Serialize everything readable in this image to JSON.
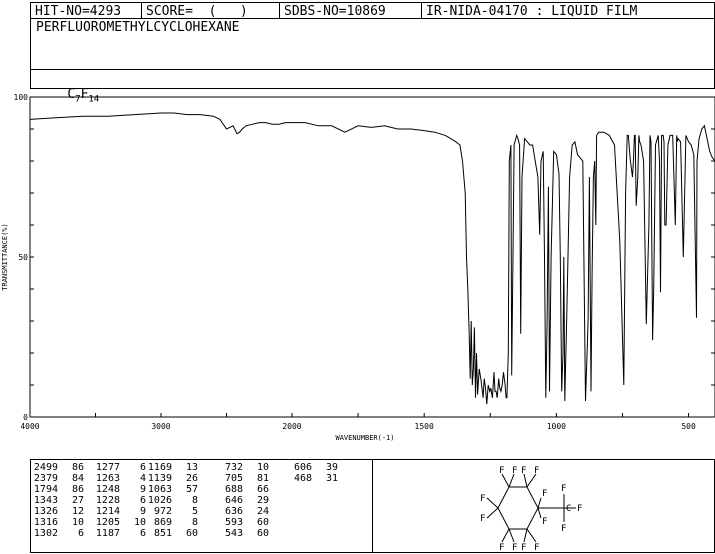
{
  "header": {
    "hit_no": "HIT-NO=4293",
    "score": "SCORE=  (   )",
    "sdbs_no": "SDBS-NO=10869",
    "ir_info": "IR-NIDA-04170 : LIQUID FILM",
    "compound_name": "PERFLUOROMETHYLCYCLOHEXANE",
    "formula_base": "C",
    "formula_sub1": "7",
    "formula_mid": "F",
    "formula_sub2": "14"
  },
  "structure": {
    "atom_label_f": "F",
    "atom_label_c": "C"
  },
  "chart_data": {
    "type": "line",
    "title": "",
    "xlabel": "WAVENUMBER(-1)",
    "ylabel": "TRANSMITTANCE(%)",
    "xlim": [
      4000,
      400
    ],
    "ylim": [
      0,
      100
    ],
    "x_ticks": [
      "4000",
      "3000",
      "2000",
      "1500",
      "1000",
      "500"
    ],
    "y_ticks": [
      "100",
      "50",
      "0"
    ],
    "series": [
      {
        "name": "",
        "x": [
          4000,
          3800,
          3600,
          3400,
          3200,
          3000,
          2900,
          2800,
          2700,
          2600,
          2550,
          2500,
          2450,
          2420,
          2400,
          2380,
          2350,
          2300,
          2250,
          2200,
          2150,
          2100,
          2050,
          2000,
          1950,
          1900,
          1850,
          1800,
          1750,
          1700,
          1650,
          1600,
          1550,
          1500,
          1460,
          1420,
          1400,
          1380,
          1365,
          1355,
          1345,
          1340,
          1335,
          1330,
          1326,
          1322,
          1318,
          1314,
          1310,
          1306,
          1302,
          1298,
          1292,
          1286,
          1280,
          1277,
          1273,
          1268,
          1263,
          1258,
          1252,
          1248,
          1242,
          1236,
          1232,
          1228,
          1224,
          1218,
          1214,
          1210,
          1205,
          1200,
          1194,
          1190,
          1187,
          1182,
          1178,
          1172,
          1169,
          1165,
          1160,
          1150,
          1145,
          1139,
          1135,
          1130,
          1120,
          1110,
          1100,
          1090,
          1080,
          1070,
          1063,
          1058,
          1050,
          1045,
          1040,
          1035,
          1030,
          1026,
          1020,
          1010,
          1000,
          990,
          985,
          980,
          975,
          972,
          968,
          960,
          950,
          940,
          930,
          920,
          900,
          890,
          880,
          875,
          869,
          865,
          860,
          855,
          851,
          848,
          840,
          830,
          820,
          800,
          780,
          760,
          745,
          738,
          732,
          728,
          720,
          712,
          708,
          705,
          702,
          698,
          692,
          688,
          685,
          680,
          670,
          660,
          650,
          646,
          642,
          636,
          632,
          625,
          615,
          610,
          606,
          602,
          596,
          593,
          590,
          585,
          578,
          570,
          560,
          550,
          545,
          543,
          540,
          530,
          520,
          510,
          500,
          490,
          480,
          470,
          468,
          460,
          450,
          440,
          430,
          420,
          410,
          400
        ],
        "values": [
          93,
          93.5,
          94,
          94,
          94.5,
          95,
          95,
          94.5,
          94.5,
          94,
          93,
          90,
          91,
          88.5,
          89,
          90,
          91,
          91.5,
          92,
          92,
          91.5,
          91.5,
          92,
          92,
          92,
          91,
          91,
          89,
          91,
          90.5,
          91,
          90,
          90,
          89.5,
          89,
          88,
          87,
          86,
          85,
          80,
          70,
          50,
          40,
          27,
          12,
          30,
          10,
          15,
          28,
          6,
          20,
          7,
          15,
          12,
          8,
          6,
          12,
          9,
          4,
          10,
          8,
          9,
          6,
          14,
          8,
          8,
          6,
          12,
          9,
          8,
          10,
          14,
          10,
          6,
          6,
          20,
          80,
          85,
          13,
          45,
          85,
          88,
          87,
          85,
          26,
          75,
          87,
          86,
          85,
          85,
          80,
          75,
          57,
          80,
          83,
          50,
          6,
          30,
          72,
          8,
          50,
          83,
          82,
          76,
          50,
          8,
          20,
          50,
          5,
          35,
          75,
          85,
          86,
          82,
          80,
          5,
          30,
          75,
          8,
          45,
          75,
          80,
          60,
          88,
          89,
          89,
          89,
          88,
          85,
          55,
          10,
          70,
          88,
          88,
          80,
          75,
          81,
          88,
          88,
          66,
          75,
          88,
          86,
          85,
          80,
          29,
          60,
          88,
          86,
          24,
          40,
          85,
          88,
          80,
          39,
          88,
          88,
          86,
          60,
          60,
          85,
          88,
          88,
          60,
          88,
          86,
          87,
          86,
          50,
          88,
          86,
          85,
          82,
          31,
          80,
          87,
          90,
          91,
          87,
          83,
          81,
          80
        ]
      }
    ]
  },
  "peak_table": {
    "columns": [
      {
        "wavenumbers": [
          "2499",
          "2379",
          "1794",
          "1343",
          "1326",
          "1316",
          "1302"
        ],
        "transmittances": [
          "86",
          "84",
          "86",
          "27",
          "12",
          "10",
          "6"
        ]
      },
      {
        "wavenumbers": [
          "1277",
          "1263",
          "1248",
          "1228",
          "1214",
          "1205",
          "1187"
        ],
        "transmittances": [
          "6",
          "4",
          "9",
          "6",
          "9",
          "10",
          "6"
        ]
      },
      {
        "wavenumbers": [
          "1169",
          "1139",
          "1063",
          "1026",
          "972",
          "869",
          "851"
        ],
        "transmittances": [
          "13",
          "26",
          "57",
          "8",
          "5",
          "8",
          "60"
        ]
      },
      {
        "wavenumbers": [
          "732",
          "705",
          "688",
          "646",
          "636",
          "593",
          "543"
        ],
        "transmittances": [
          "10",
          "81",
          "66",
          "29",
          "24",
          "60",
          "60"
        ]
      },
      {
        "wavenumbers": [
          "606",
          "468"
        ],
        "transmittances": [
          "39",
          "31"
        ]
      }
    ]
  }
}
